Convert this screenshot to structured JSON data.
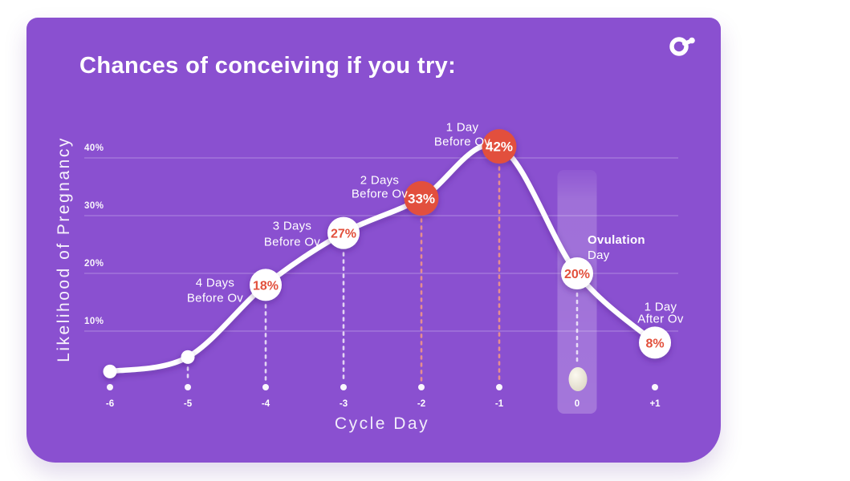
{
  "card": {
    "title": "Chances of conceiving if you try:",
    "brand_icon": "mars-style-logo"
  },
  "colors": {
    "background": "#ffffff",
    "card_purple": "#8a50d0",
    "accent_red": "#e2503c",
    "white": "#ffffff",
    "dash_white": "rgba(255,255,255,0.75)",
    "dash_pink": "rgba(238,148,135,0.9)",
    "gridline": "rgba(255,255,255,0.26)",
    "band_highlight": "rgba(255,255,255,0.2)",
    "egg_cream": "#f2eddf",
    "curve_shadow": "#3d1a6e"
  },
  "chart_data": {
    "type": "line",
    "title": "Chances of conceiving if you try:",
    "xlabel": "Cycle Day",
    "ylabel": "Likelihood of Pregnancy",
    "x": [
      -6,
      -5,
      -4,
      -3,
      -2,
      -1,
      0,
      1
    ],
    "x_tick_labels": [
      "-6",
      "-5",
      "-4",
      "-3",
      "-2",
      "-1",
      "0",
      "+1"
    ],
    "values": [
      3,
      5.5,
      18,
      27,
      33,
      42,
      20,
      8
    ],
    "y_ticks": [
      "10%",
      "20%",
      "30%",
      "40%"
    ],
    "ylim": [
      0,
      45
    ],
    "grid": true,
    "legend": "none",
    "points": [
      {
        "day": "-6",
        "value": 3,
        "marker": "dot"
      },
      {
        "day": "-5",
        "value": 5.5,
        "marker": "dot"
      },
      {
        "day": "-4",
        "value": 18,
        "marker": "bubble-white",
        "pct_label": "18%",
        "annotation": [
          "4 Days",
          "Before Ov"
        ]
      },
      {
        "day": "-3",
        "value": 27,
        "marker": "bubble-white",
        "pct_label": "27%",
        "annotation": [
          "3 Days",
          "Before Ov"
        ]
      },
      {
        "day": "-2",
        "value": 33,
        "marker": "bubble-red",
        "pct_label": "33%",
        "annotation": [
          "2 Days",
          "Before Ov"
        ]
      },
      {
        "day": "-1",
        "value": 42,
        "marker": "bubble-red",
        "pct_label": "42%",
        "annotation": [
          "1 Day",
          "Before Ov"
        ]
      },
      {
        "day": "0",
        "value": 20,
        "marker": "bubble-white",
        "pct_label": "20%",
        "annotation": [
          "Ovulation",
          "Day"
        ],
        "annotation_first_line_bold": true,
        "highlight_band": true,
        "egg_icon": true
      },
      {
        "day": "+1",
        "value": 8,
        "marker": "bubble-white",
        "pct_label": "8%",
        "annotation": [
          "1 Day",
          "After Ov"
        ]
      }
    ]
  }
}
